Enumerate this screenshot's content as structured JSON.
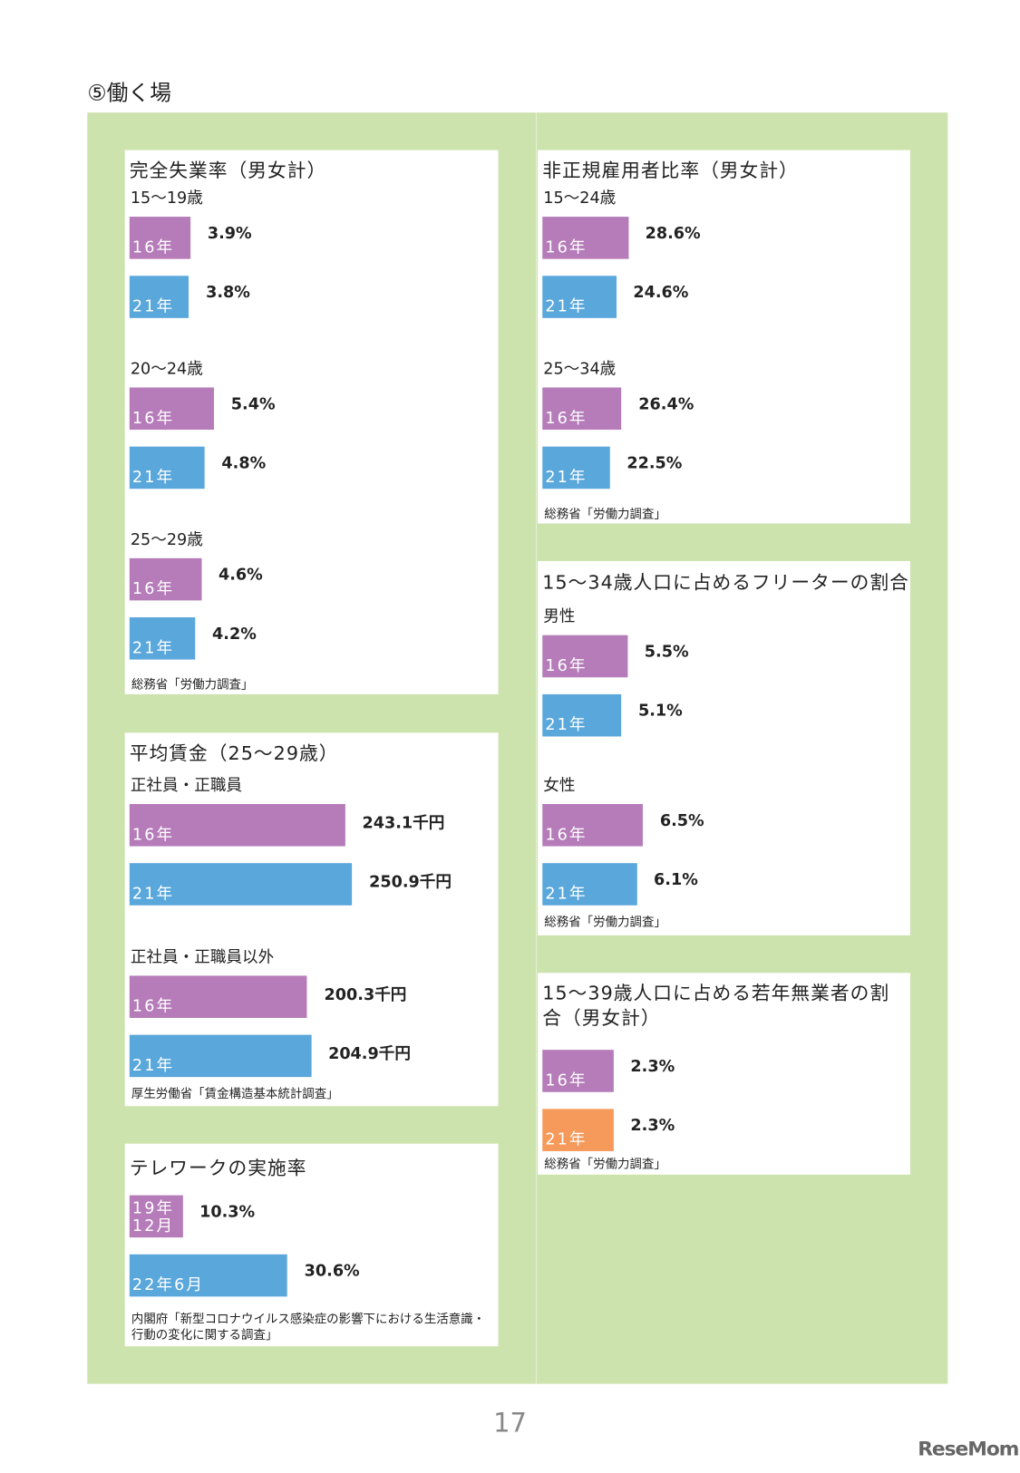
{
  "title": "⑤働く場",
  "page_number": "17",
  "watermark": "ReseMom",
  "panels": [
    {
      "title": "完全失業率（男女計）",
      "groups": [
        {
          "label": "15～19歳",
          "bars": [
            {
              "label": "16年",
              "value": 3.9,
              "value_label": "3.9%",
              "color": "#b57cb9"
            },
            {
              "label": "21年",
              "value": 3.8,
              "value_label": "3.8%",
              "color": "#5aa7dc"
            }
          ]
        },
        {
          "label": "20～24歳",
          "bars": [
            {
              "label": "16年",
              "value": 5.4,
              "value_label": "5.4%",
              "color": "#b57cb9"
            },
            {
              "label": "21年",
              "value": 4.8,
              "value_label": "4.8%",
              "color": "#5aa7dc"
            }
          ]
        },
        {
          "label": "25～29歳",
          "bars": [
            {
              "label": "16年",
              "value": 4.6,
              "value_label": "4.6%",
              "color": "#b57cb9"
            },
            {
              "label": "21年",
              "value": 4.2,
              "value_label": "4.2%",
              "color": "#5aa7dc"
            }
          ]
        }
      ],
      "source": "総務省「労働力調査」"
    },
    {
      "title": "平均賃金（25～29歳）",
      "groups": [
        {
          "label": "正社員・正職員",
          "bars": [
            {
              "label": "16年",
              "value": 243.1,
              "value_label": "243.1千円",
              "color": "#b57cb9"
            },
            {
              "label": "21年",
              "value": 250.9,
              "value_label": "250.9千円",
              "color": "#5aa7dc"
            }
          ]
        },
        {
          "label": "正社員・正職員以外",
          "bars": [
            {
              "label": "16年",
              "value": 200.3,
              "value_label": "200.3千円",
              "color": "#b57cb9"
            },
            {
              "label": "21年",
              "value": 204.9,
              "value_label": "204.9千円",
              "color": "#5aa7dc"
            }
          ]
        }
      ],
      "source": "厚生労働省「賃金構造基本統計調査」"
    },
    {
      "title": "テレワークの実施率",
      "groups": [
        {
          "bars": [
            {
              "label": "19年12月",
              "value": 10.3,
              "value_label": "10.3%",
              "color": "#b57cb9"
            },
            {
              "label": "22年6月",
              "value": 30.6,
              "value_label": "30.6%",
              "color": "#5aa7dc"
            }
          ]
        }
      ],
      "source": "内閣府「新型コロナウイルス感染症の影響下における生活意識・行動の変化に関する調査」"
    },
    {
      "title": "非正規雇用者比率（男女計）",
      "groups": [
        {
          "label": "15～24歳",
          "bars": [
            {
              "label": "16年",
              "value": 28.6,
              "value_label": "28.6%",
              "color": "#b57cb9"
            },
            {
              "label": "21年",
              "value": 24.6,
              "value_label": "24.6%",
              "color": "#5aa7dc"
            }
          ]
        },
        {
          "label": "25～34歳",
          "bars": [
            {
              "label": "16年",
              "value": 26.4,
              "value_label": "26.4%",
              "color": "#b57cb9"
            },
            {
              "label": "21年",
              "value": 22.5,
              "value_label": "22.5%",
              "color": "#5aa7dc"
            }
          ]
        }
      ],
      "source": "総務省「労働力調査」"
    },
    {
      "title": "15～34歳人口に占めるフリーターの割合",
      "groups": [
        {
          "label": "男性",
          "bars": [
            {
              "label": "16年",
              "value": 5.5,
              "value_label": "5.5%",
              "color": "#b57cb9"
            },
            {
              "label": "21年",
              "value": 5.1,
              "value_label": "5.1%",
              "color": "#5aa7dc"
            }
          ]
        },
        {
          "label": "女性",
          "bars": [
            {
              "label": "16年",
              "value": 6.5,
              "value_label": "6.5%",
              "color": "#b57cb9"
            },
            {
              "label": "21年",
              "value": 6.1,
              "value_label": "6.1%",
              "color": "#5aa7dc"
            }
          ]
        }
      ],
      "source": "総務省「労働力調査」"
    },
    {
      "title": "15～39歳人口に占める若年無業者の割合（男女計）",
      "groups": [
        {
          "bars": [
            {
              "label": "16年",
              "value": 2.3,
              "value_label": "2.3%",
              "color": "#b57cb9"
            },
            {
              "label": "21年",
              "value": 2.3,
              "value_label": "2.3%",
              "color": "#f59a5a"
            }
          ]
        }
      ],
      "source": "総務省「労働力調査」"
    }
  ]
}
